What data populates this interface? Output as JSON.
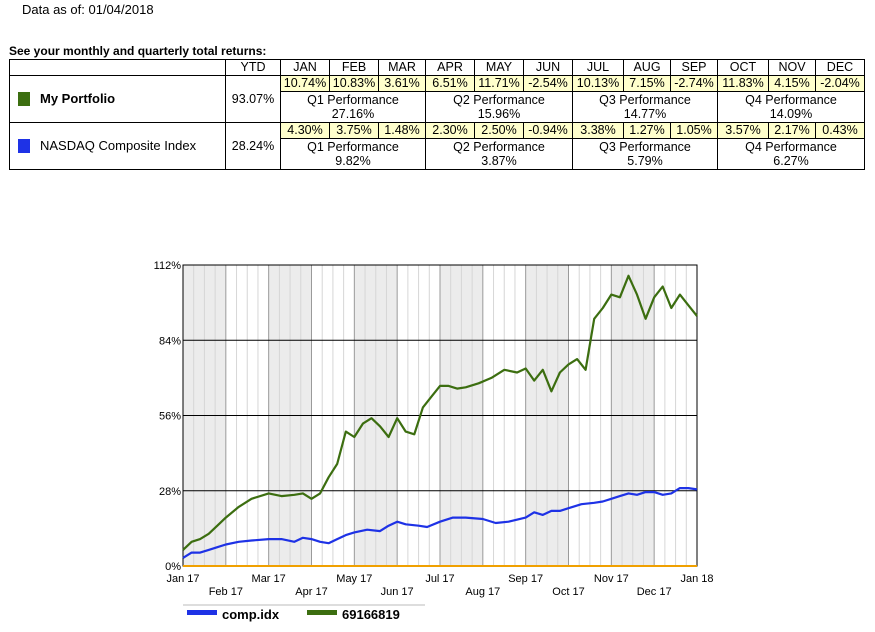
{
  "as_of": "Data as of: 01/04/2018",
  "heading": "See your monthly and quarterly total returns:",
  "table": {
    "ytd_header": "YTD",
    "months": [
      "JAN",
      "FEB",
      "MAR",
      "APR",
      "MAY",
      "JUN",
      "JUL",
      "AUG",
      "SEP",
      "OCT",
      "NOV",
      "DEC"
    ],
    "rows": [
      {
        "name": "My Portfolio",
        "color": "#3c6e10",
        "ytd": "93.07%",
        "monthly": [
          "10.74%",
          "10.83%",
          "3.61%",
          "6.51%",
          "11.71%",
          "-2.54%",
          "10.13%",
          "7.15%",
          "-2.74%",
          "11.83%",
          "4.15%",
          "-2.04%"
        ],
        "quarters": [
          {
            "label": "Q1 Performance",
            "value": "27.16%"
          },
          {
            "label": "Q2 Performance",
            "value": "15.96%"
          },
          {
            "label": "Q3 Performance",
            "value": "14.77%"
          },
          {
            "label": "Q4 Performance",
            "value": "14.09%"
          }
        ]
      },
      {
        "name": "NASDAQ Composite Index",
        "color": "#1e32e6",
        "ytd": "28.24%",
        "monthly": [
          "4.30%",
          "3.75%",
          "1.48%",
          "2.30%",
          "2.50%",
          "-0.94%",
          "3.38%",
          "1.27%",
          "1.05%",
          "3.57%",
          "2.17%",
          "0.43%"
        ],
        "quarters": [
          {
            "label": "Q1 Performance",
            "value": "9.82%"
          },
          {
            "label": "Q2 Performance",
            "value": "3.87%"
          },
          {
            "label": "Q3 Performance",
            "value": "5.79%"
          },
          {
            "label": "Q4 Performance",
            "value": "6.27%"
          }
        ]
      }
    ]
  },
  "chart_data": {
    "type": "line",
    "title": "",
    "xlabel": "",
    "ylabel": "",
    "ylim": [
      0,
      112
    ],
    "y_ticks": [
      "0%",
      "28%",
      "56%",
      "84%",
      "112%"
    ],
    "y_tick_values": [
      0,
      28,
      56,
      84,
      112
    ],
    "x_ticks_top": [
      "Jan 17",
      "Mar 17",
      "May 17",
      "Jul 17",
      "Sep 17",
      "Nov 17",
      "Jan 18"
    ],
    "x_ticks_bottom": [
      "Feb 17",
      "Apr 17",
      "Jun 17",
      "Aug 17",
      "Oct 17",
      "Dec 17"
    ],
    "x_month_range": [
      0,
      12
    ],
    "zero_line_color": "#f0a000",
    "series": [
      {
        "name": "comp.idx",
        "color": "#1e32e6",
        "x": [
          0,
          0.2,
          0.4,
          0.6,
          0.8,
          1.0,
          1.3,
          1.6,
          2.0,
          2.3,
          2.6,
          2.8,
          3.0,
          3.2,
          3.4,
          3.6,
          3.8,
          4.0,
          4.3,
          4.6,
          4.8,
          5.0,
          5.2,
          5.5,
          5.7,
          6.0,
          6.3,
          6.6,
          7.0,
          7.3,
          7.6,
          8.0,
          8.2,
          8.4,
          8.6,
          8.8,
          9.0,
          9.3,
          9.6,
          9.8,
          10.0,
          10.2,
          10.4,
          10.6,
          10.8,
          11.0,
          11.2,
          11.4,
          11.6,
          11.8,
          12.0
        ],
        "values": [
          3,
          5,
          5,
          6,
          7,
          8,
          9,
          9.5,
          10,
          10,
          9,
          10.5,
          10,
          9,
          8.5,
          10,
          11.5,
          12.5,
          13.5,
          13,
          15,
          16.5,
          15.5,
          15,
          14.5,
          16.5,
          18,
          18,
          17.5,
          16,
          16.5,
          18,
          20,
          19,
          20.5,
          20.5,
          21.5,
          23,
          23.5,
          24,
          25,
          26,
          27,
          26.5,
          27.5,
          27.5,
          26.5,
          27,
          29,
          29,
          28.5
        ]
      },
      {
        "name": "69166819",
        "color": "#3c6e10",
        "x": [
          0,
          0.2,
          0.4,
          0.6,
          0.8,
          1.0,
          1.3,
          1.6,
          2.0,
          2.3,
          2.6,
          2.8,
          3.0,
          3.2,
          3.4,
          3.6,
          3.8,
          4.0,
          4.2,
          4.4,
          4.6,
          4.8,
          5.0,
          5.2,
          5.4,
          5.6,
          5.8,
          6.0,
          6.2,
          6.4,
          6.6,
          6.9,
          7.2,
          7.5,
          7.8,
          8.0,
          8.2,
          8.4,
          8.6,
          8.8,
          9.0,
          9.2,
          9.4,
          9.6,
          9.8,
          10.0,
          10.2,
          10.4,
          10.6,
          10.8,
          11.0,
          11.2,
          11.4,
          11.6,
          11.8,
          12.0
        ],
        "values": [
          6,
          9,
          10,
          12,
          15,
          18,
          22,
          25,
          27,
          26,
          26.5,
          27,
          25,
          27,
          33,
          38,
          50,
          48,
          53,
          55,
          52,
          48,
          55,
          50,
          49,
          59,
          63,
          67,
          67,
          66,
          66.5,
          68,
          70,
          73,
          72,
          73.5,
          69,
          73,
          65,
          72,
          75,
          77,
          73,
          92,
          96,
          101,
          100,
          108,
          101,
          92,
          100,
          104,
          96,
          101,
          97,
          93
        ]
      }
    ]
  }
}
